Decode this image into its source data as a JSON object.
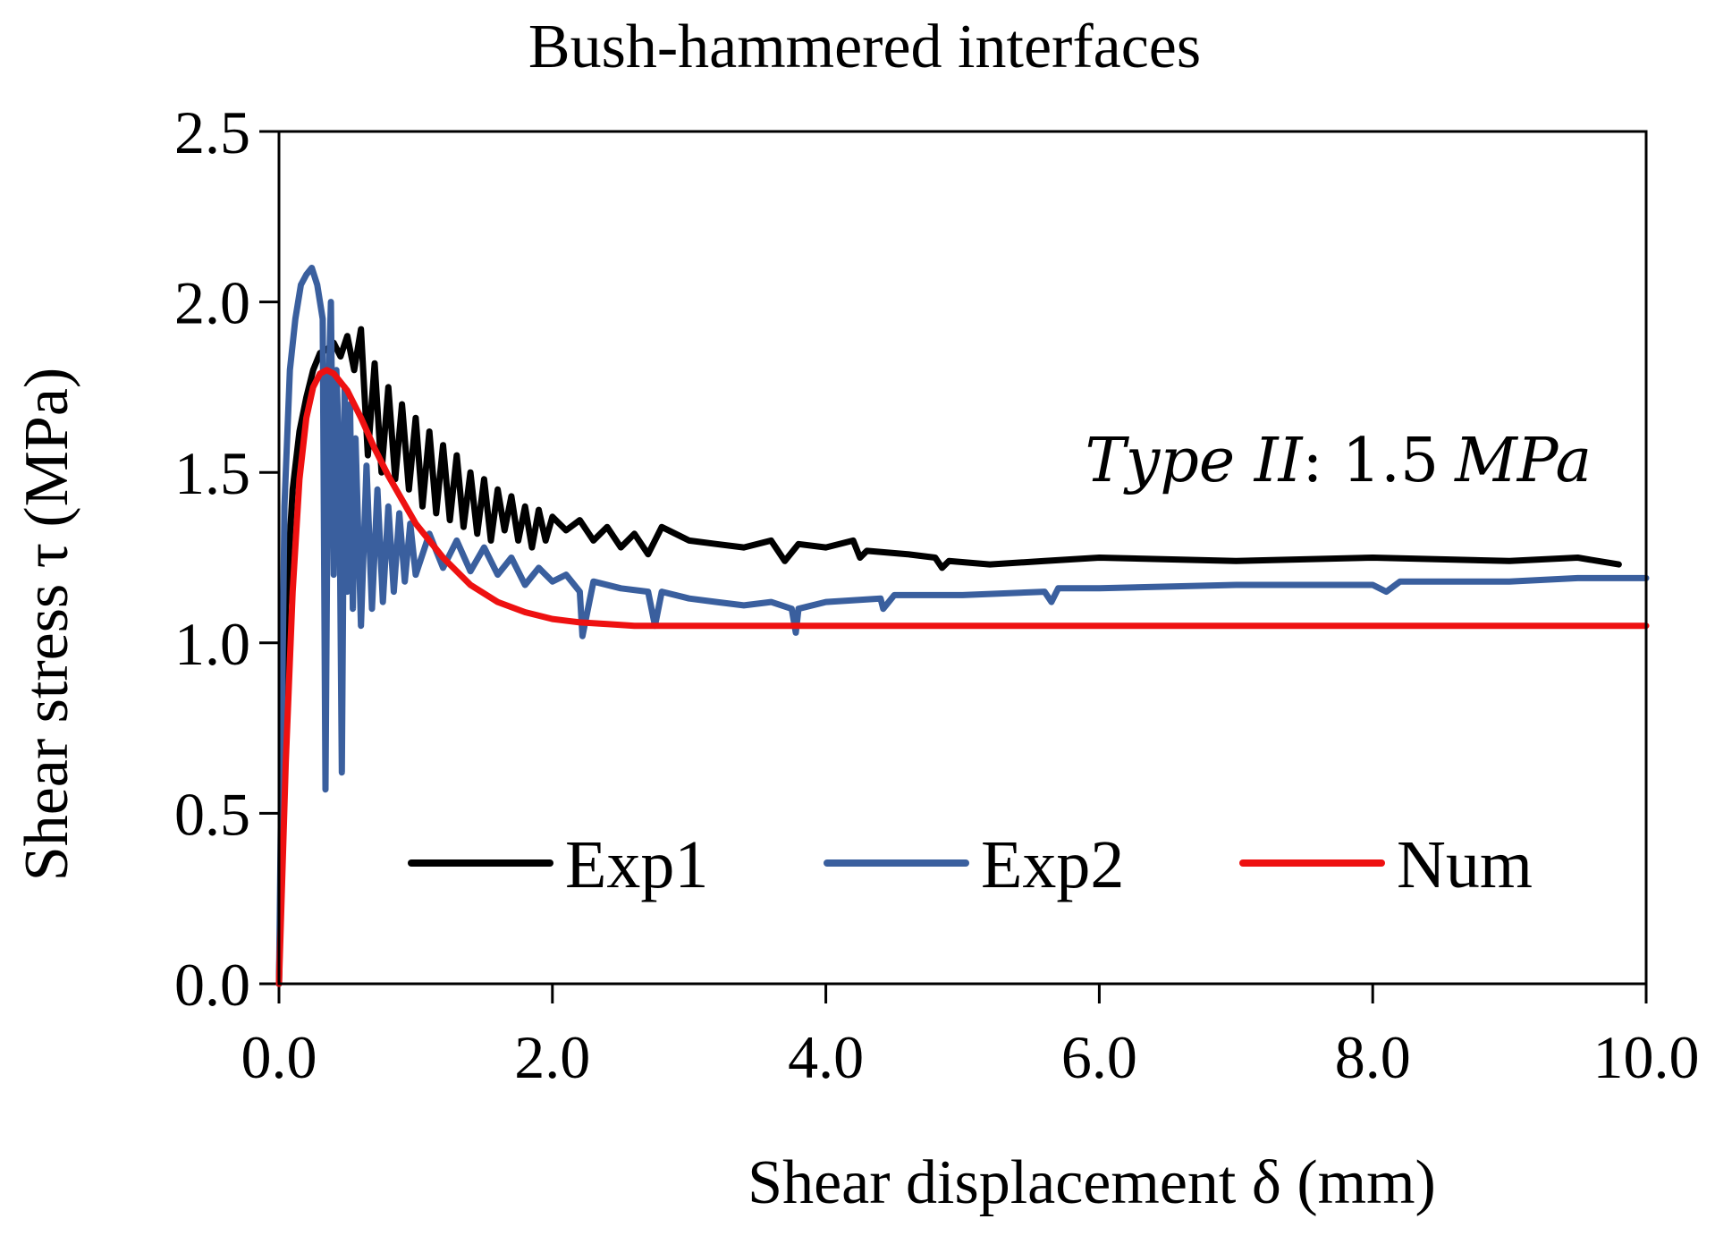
{
  "chart_data": {
    "type": "line",
    "title": "Bush-hammered interfaces",
    "xlabel": "Shear displacement δ (mm)",
    "ylabel": "Shear stress τ (MPa)",
    "xlim": [
      0,
      10
    ],
    "ylim": [
      0,
      2.5
    ],
    "xticks": [
      0,
      2,
      4,
      6,
      8,
      10
    ],
    "yticks": [
      0,
      0.5,
      1.0,
      1.5,
      2.0,
      2.5
    ],
    "xtick_labels": [
      "0.0",
      "2.0",
      "4.0",
      "6.0",
      "8.0",
      "10.0"
    ],
    "ytick_labels": [
      "0.0",
      "0.5",
      "1.0",
      "1.5",
      "2.0",
      "2.5"
    ],
    "grid": false,
    "legend_position": "bottom-center",
    "annotation": {
      "type_label": "Type II",
      "separator": ": ",
      "value": "1.5",
      "unit": "MPa"
    },
    "series": [
      {
        "name": "Exp1",
        "color": "#000000",
        "x": [
          0.0,
          0.05,
          0.1,
          0.15,
          0.2,
          0.25,
          0.3,
          0.35,
          0.4,
          0.45,
          0.5,
          0.55,
          0.6,
          0.65,
          0.7,
          0.75,
          0.8,
          0.85,
          0.9,
          0.95,
          1.0,
          1.05,
          1.1,
          1.15,
          1.2,
          1.25,
          1.3,
          1.35,
          1.4,
          1.45,
          1.5,
          1.55,
          1.6,
          1.65,
          1.7,
          1.75,
          1.8,
          1.85,
          1.9,
          1.95,
          2.0,
          2.1,
          2.2,
          2.3,
          2.4,
          2.5,
          2.6,
          2.7,
          2.8,
          3.0,
          3.2,
          3.4,
          3.6,
          3.7,
          3.8,
          4.0,
          4.2,
          4.25,
          4.3,
          4.6,
          4.8,
          4.85,
          4.9,
          5.2,
          5.6,
          6.0,
          7.0,
          8.0,
          9.0,
          9.5,
          9.8
        ],
        "y": [
          0.0,
          1.1,
          1.45,
          1.62,
          1.72,
          1.8,
          1.85,
          1.86,
          1.88,
          1.84,
          1.9,
          1.8,
          1.92,
          1.55,
          1.82,
          1.5,
          1.75,
          1.48,
          1.7,
          1.45,
          1.66,
          1.4,
          1.62,
          1.38,
          1.58,
          1.36,
          1.55,
          1.34,
          1.5,
          1.32,
          1.48,
          1.3,
          1.45,
          1.33,
          1.43,
          1.3,
          1.4,
          1.28,
          1.39,
          1.3,
          1.37,
          1.33,
          1.36,
          1.3,
          1.34,
          1.28,
          1.32,
          1.26,
          1.34,
          1.3,
          1.29,
          1.28,
          1.3,
          1.24,
          1.29,
          1.28,
          1.3,
          1.25,
          1.27,
          1.26,
          1.25,
          1.22,
          1.24,
          1.23,
          1.24,
          1.25,
          1.24,
          1.25,
          1.24,
          1.25,
          1.23
        ]
      },
      {
        "name": "Exp2",
        "color": "#3a5f9e",
        "x": [
          0.0,
          0.04,
          0.08,
          0.12,
          0.16,
          0.2,
          0.24,
          0.28,
          0.32,
          0.34,
          0.36,
          0.38,
          0.4,
          0.42,
          0.44,
          0.46,
          0.48,
          0.5,
          0.52,
          0.54,
          0.56,
          0.6,
          0.64,
          0.68,
          0.72,
          0.76,
          0.8,
          0.84,
          0.88,
          0.92,
          0.96,
          1.0,
          1.1,
          1.2,
          1.3,
          1.4,
          1.5,
          1.6,
          1.7,
          1.8,
          1.9,
          2.0,
          2.1,
          2.2,
          2.22,
          2.3,
          2.5,
          2.7,
          2.75,
          2.8,
          3.0,
          3.2,
          3.4,
          3.6,
          3.75,
          3.78,
          3.8,
          4.0,
          4.4,
          4.42,
          4.5,
          5.0,
          5.6,
          5.65,
          5.7,
          6.0,
          7.0,
          7.5,
          8.0,
          8.1,
          8.2,
          9.0,
          9.5,
          10.0
        ],
        "y": [
          0.0,
          1.4,
          1.8,
          1.95,
          2.05,
          2.08,
          2.1,
          2.05,
          1.95,
          0.57,
          1.7,
          2.0,
          1.2,
          1.8,
          1.55,
          0.62,
          1.75,
          1.15,
          1.7,
          1.1,
          1.6,
          1.05,
          1.52,
          1.1,
          1.45,
          1.12,
          1.4,
          1.15,
          1.38,
          1.18,
          1.35,
          1.2,
          1.32,
          1.22,
          1.3,
          1.21,
          1.28,
          1.2,
          1.25,
          1.17,
          1.22,
          1.18,
          1.2,
          1.15,
          1.02,
          1.18,
          1.16,
          1.15,
          1.05,
          1.15,
          1.13,
          1.12,
          1.11,
          1.12,
          1.1,
          1.03,
          1.1,
          1.12,
          1.13,
          1.1,
          1.14,
          1.14,
          1.15,
          1.12,
          1.16,
          1.16,
          1.17,
          1.17,
          1.17,
          1.15,
          1.18,
          1.18,
          1.19,
          1.19
        ]
      },
      {
        "name": "Num",
        "color": "#ee1111",
        "x": [
          0.0,
          0.05,
          0.1,
          0.15,
          0.2,
          0.25,
          0.3,
          0.35,
          0.4,
          0.5,
          0.6,
          0.7,
          0.8,
          0.9,
          1.0,
          1.2,
          1.4,
          1.6,
          1.8,
          2.0,
          2.2,
          2.4,
          2.6,
          3.0,
          4.0,
          5.0,
          6.0,
          7.0,
          8.0,
          9.0,
          10.0
        ],
        "y": [
          0.0,
          0.65,
          1.15,
          1.48,
          1.66,
          1.75,
          1.79,
          1.8,
          1.79,
          1.74,
          1.66,
          1.57,
          1.49,
          1.42,
          1.35,
          1.25,
          1.17,
          1.12,
          1.09,
          1.07,
          1.06,
          1.055,
          1.05,
          1.05,
          1.05,
          1.05,
          1.05,
          1.05,
          1.05,
          1.05,
          1.05
        ]
      }
    ]
  }
}
